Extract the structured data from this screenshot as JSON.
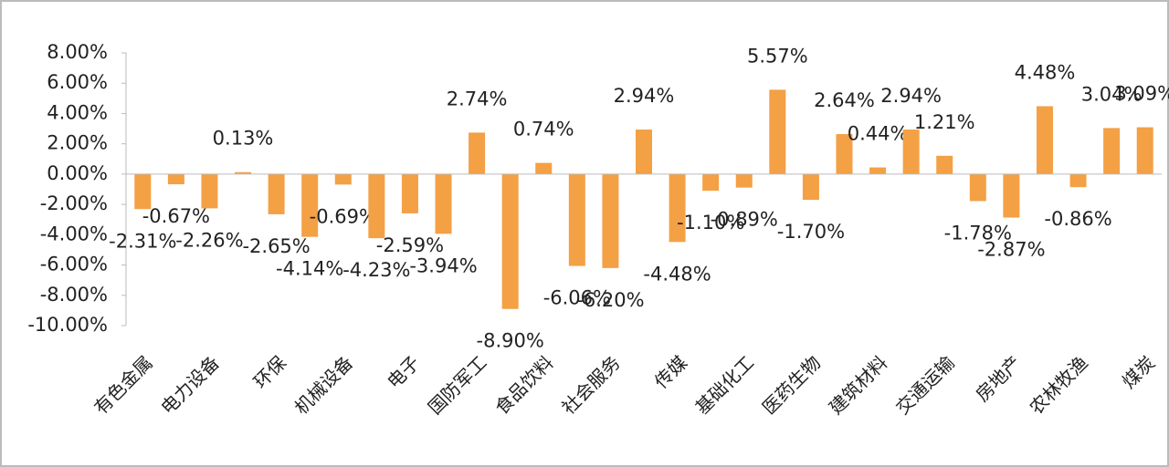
{
  "chart_data": {
    "type": "bar",
    "categories": [
      "有色金属",
      null,
      "电力设备",
      null,
      "环保",
      null,
      "机械设备",
      null,
      "电子",
      null,
      "国防军工",
      null,
      "食品饮料",
      null,
      "社会服务",
      null,
      "传媒",
      null,
      "基础化工",
      null,
      "医药生物",
      null,
      "建筑材料",
      null,
      "交通运输",
      null,
      "房地产",
      null,
      "农林牧渔",
      null,
      "煤炭"
    ],
    "values": [
      -2.31,
      -0.67,
      -2.26,
      0.13,
      -2.65,
      -4.14,
      -0.69,
      -4.23,
      -2.59,
      -3.94,
      2.74,
      -8.9,
      0.74,
      -6.06,
      -6.2,
      2.94,
      -4.48,
      -1.1,
      -0.89,
      5.57,
      -1.7,
      2.64,
      0.44,
      2.94,
      1.21,
      -1.78,
      -2.87,
      4.48,
      -0.86,
      3.04,
      3.09
    ],
    "value_labels": [
      "-2.31%",
      "-0.67%",
      "-2.26%",
      "0.13%",
      "-2.65%",
      "-4.14%",
      "-0.69%",
      "-4.23%",
      "-2.59%",
      "-3.94%",
      "2.74%",
      "-8.90%",
      "0.74%",
      "-6.06%",
      "-6.20%",
      "2.94%",
      "-4.48%",
      "-1.10%",
      "-0.89%",
      "5.57%",
      "-1.70%",
      "2.64%",
      "0.44%",
      "2.94%",
      "1.21%",
      "-1.78%",
      "-2.87%",
      "4.48%",
      "-0.86%",
      "3.04%",
      "3.09%"
    ],
    "color": "#f4a045",
    "ylim": [
      -10,
      8
    ],
    "yticks": [
      {
        "value": -10,
        "label": "-10.00%"
      },
      {
        "value": -8,
        "label": "-8.00%"
      },
      {
        "value": -6,
        "label": "-6.00%"
      },
      {
        "value": -4,
        "label": "-4.00%"
      },
      {
        "value": -2,
        "label": "-2.00%"
      },
      {
        "value": 0,
        "label": "0.00%"
      },
      {
        "value": 2,
        "label": "2.00%"
      },
      {
        "value": 4,
        "label": "4.00%"
      },
      {
        "value": 6,
        "label": "6.00%"
      },
      {
        "value": 8,
        "label": "8.00%"
      }
    ]
  }
}
